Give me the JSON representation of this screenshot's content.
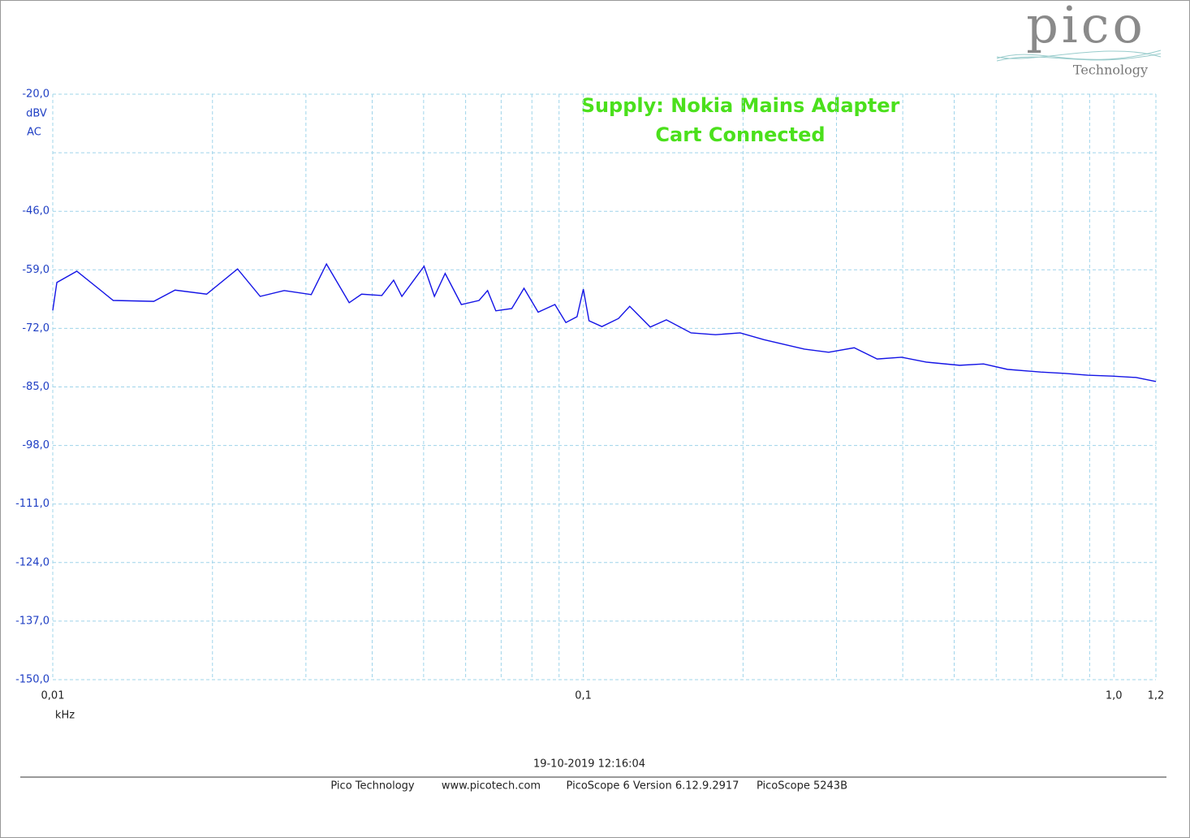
{
  "chart_data": {
    "type": "line",
    "annotations": [
      "Supply: Nokia Mains Adapter",
      "Cart Connected"
    ],
    "y_unit": "dBV",
    "coupling": "AC",
    "xlabel": "kHz",
    "color": "#1414e6",
    "xscale": "log",
    "xlim": [
      0.01,
      1.2
    ],
    "xticks": [
      {
        "value": 0.01,
        "label": "0,01"
      },
      {
        "value": 0.1,
        "label": "0,1"
      },
      {
        "value": 1.0,
        "label": "1,0"
      },
      {
        "value": 1.2,
        "label": "1,2"
      }
    ],
    "xgrid": [
      0.01,
      0.02,
      0.03,
      0.04,
      0.05,
      0.06,
      0.07,
      0.08,
      0.09,
      0.1,
      0.2,
      0.3,
      0.4,
      0.5,
      0.6,
      0.7,
      0.8,
      0.9,
      1.0,
      1.2
    ],
    "ylim": [
      -150,
      -20
    ],
    "yticks": [
      {
        "value": -20,
        "label": "-20,0"
      },
      {
        "value": -46,
        "label": "-46,0"
      },
      {
        "value": -59,
        "label": "-59,0"
      },
      {
        "value": -72,
        "label": "-72,0"
      },
      {
        "value": -85,
        "label": "-85,0"
      },
      {
        "value": -98,
        "label": "-98,0"
      },
      {
        "value": -111,
        "label": "-111,0"
      },
      {
        "value": -124,
        "label": "-124,0"
      },
      {
        "value": -137,
        "label": "-137,0"
      },
      {
        "value": -150,
        "label": "-150,0"
      }
    ],
    "ygrid": [
      -20,
      -33,
      -46,
      -59,
      -72,
      -85,
      -98,
      -111,
      -124,
      -137,
      -150
    ],
    "grid": true,
    "x": [
      0.01,
      0.01018,
      0.0111,
      0.013,
      0.0155,
      0.017,
      0.0195,
      0.0223,
      0.0246,
      0.0273,
      0.0307,
      0.0328,
      0.0362,
      0.0382,
      0.0417,
      0.0439,
      0.0455,
      0.0501,
      0.0524,
      0.0549,
      0.0589,
      0.0636,
      0.066,
      0.0684,
      0.0733,
      0.0773,
      0.0822,
      0.0884,
      0.0927,
      0.0973,
      0.1,
      0.1025,
      0.1084,
      0.1165,
      0.1223,
      0.1337,
      0.1434,
      0.1596,
      0.1775,
      0.1975,
      0.219,
      0.242,
      0.261,
      0.29,
      0.324,
      0.358,
      0.398,
      0.444,
      0.512,
      0.568,
      0.63,
      0.728,
      0.807,
      0.893,
      0.993,
      1.1,
      1.2
    ],
    "values": [
      -68.0,
      -61.8,
      -59.3,
      -65.8,
      -66.0,
      -63.5,
      -64.4,
      -58.8,
      -64.9,
      -63.6,
      -64.5,
      -57.7,
      -66.3,
      -64.4,
      -64.7,
      -61.3,
      -64.9,
      -58.2,
      -64.9,
      -59.8,
      -66.7,
      -65.8,
      -63.6,
      -68.1,
      -67.6,
      -63.1,
      -68.4,
      -66.7,
      -70.7,
      -69.4,
      -63.3,
      -70.3,
      -71.6,
      -69.8,
      -67.1,
      -71.7,
      -70.1,
      -73.0,
      -73.4,
      -73.0,
      -74.5,
      -75.7,
      -76.6,
      -77.3,
      -76.3,
      -78.8,
      -78.4,
      -79.5,
      -80.2,
      -79.9,
      -81.1,
      -81.7,
      -82.0,
      -82.4,
      -82.6,
      -82.9,
      -83.8
    ]
  },
  "logo": {
    "name": "pico",
    "subtitle": "Technology"
  },
  "timestamp": "19-10-2019 12:16:04",
  "footer": [
    "Pico Technology",
    "www.picotech.com",
    "PicoScope 6 Version 6.12.9.2917",
    "PicoScope 5243B"
  ]
}
